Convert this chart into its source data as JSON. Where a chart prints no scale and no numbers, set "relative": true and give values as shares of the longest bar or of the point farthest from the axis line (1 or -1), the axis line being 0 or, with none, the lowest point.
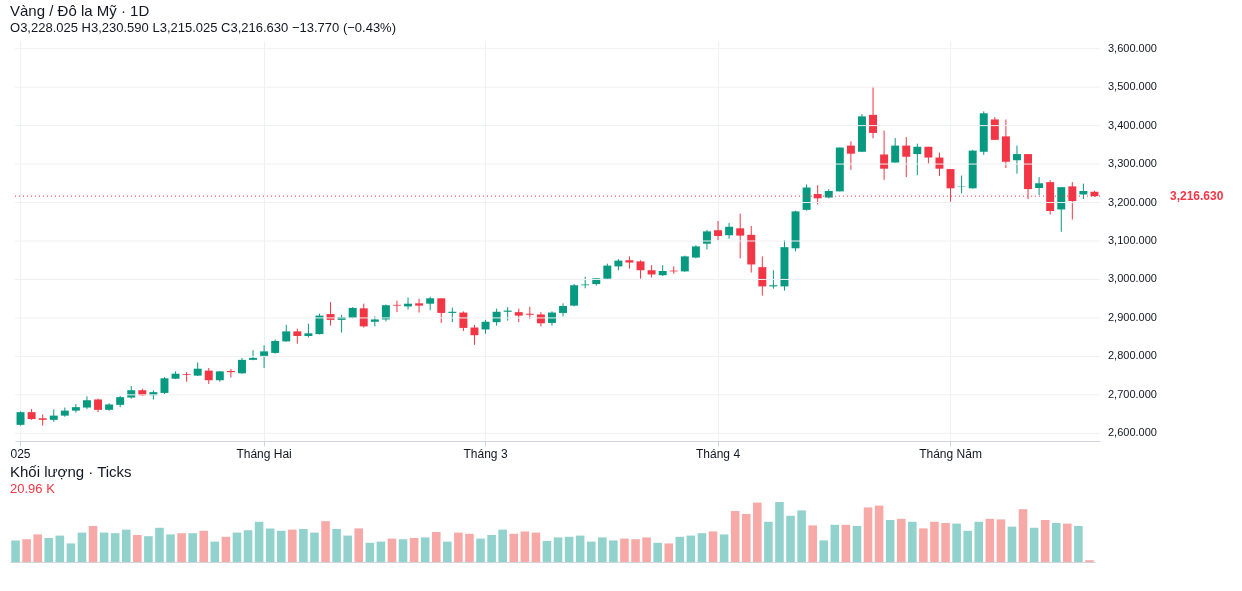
{
  "chart_data": [
    {
      "type": "candlestick",
      "title": "Vàng / Đô la Mỹ · 1D",
      "annotations": [
        "O3,228.025 H3,230.590 L3,215.025 C3,216.630 −13.770 (−0.43%)"
      ],
      "categories": [
        "025",
        null,
        null,
        null,
        null,
        null,
        null,
        null,
        null,
        null,
        null,
        null,
        null,
        null,
        null,
        null,
        null,
        null,
        null,
        null,
        null,
        null,
        "Tháng Hai",
        null,
        null,
        null,
        null,
        null,
        null,
        null,
        null,
        null,
        null,
        null,
        null,
        null,
        null,
        null,
        null,
        null,
        null,
        null,
        "Tháng 3",
        null,
        null,
        null,
        null,
        null,
        null,
        null,
        null,
        null,
        null,
        null,
        null,
        null,
        null,
        null,
        null,
        null,
        null,
        null,
        null,
        "Tháng 4",
        null,
        null,
        null,
        null,
        null,
        null,
        null,
        null,
        null,
        null,
        null,
        null,
        null,
        null,
        null,
        null,
        null,
        null,
        null,
        null,
        "Tháng Năm",
        null,
        null,
        null,
        null,
        null,
        null,
        null,
        null,
        null,
        null,
        null,
        null,
        null
      ],
      "ohlc": [
        [
          2622,
          2657,
          2620,
          2655
        ],
        [
          2655,
          2663,
          2635,
          2637
        ],
        [
          2639,
          2649,
          2620,
          2635
        ],
        [
          2635,
          2662,
          2630,
          2646
        ],
        [
          2646,
          2667,
          2643,
          2659
        ],
        [
          2659,
          2676,
          2654,
          2668
        ],
        [
          2667,
          2696,
          2663,
          2686
        ],
        [
          2688,
          2690,
          2655,
          2661
        ],
        [
          2661,
          2678,
          2659,
          2675
        ],
        [
          2674,
          2697,
          2668,
          2694
        ],
        [
          2693,
          2723,
          2690,
          2712
        ],
        [
          2712,
          2716,
          2697,
          2699
        ],
        [
          2699,
          2712,
          2688,
          2707
        ],
        [
          2705,
          2746,
          2702,
          2743
        ],
        [
          2742,
          2761,
          2741,
          2755
        ],
        [
          2754,
          2759,
          2734,
          2752
        ],
        [
          2750,
          2784,
          2749,
          2768
        ],
        [
          2763,
          2770,
          2728,
          2738
        ],
        [
          2738,
          2762,
          2734,
          2761
        ],
        [
          2762,
          2767,
          2745,
          2759
        ],
        [
          2756,
          2796,
          2755,
          2791
        ],
        [
          2791,
          2816,
          2790,
          2796
        ],
        [
          2799,
          2829,
          2770,
          2813
        ],
        [
          2809,
          2844,
          2807,
          2840
        ],
        [
          2839,
          2882,
          2838,
          2865
        ],
        [
          2865,
          2872,
          2833,
          2853
        ],
        [
          2853,
          2885,
          2849,
          2860
        ],
        [
          2858,
          2911,
          2857,
          2906
        ],
        [
          2910,
          2941,
          2880,
          2895
        ],
        [
          2895,
          2908,
          2862,
          2902
        ],
        [
          2900,
          2928,
          2899,
          2926
        ],
        [
          2925,
          2937,
          2875,
          2878
        ],
        [
          2890,
          2904,
          2878,
          2896
        ],
        [
          2896,
          2935,
          2891,
          2933
        ],
        [
          2934,
          2945,
          2915,
          2932
        ],
        [
          2930,
          2953,
          2922,
          2937
        ],
        [
          2938,
          2950,
          2914,
          2932
        ],
        [
          2937,
          2955,
          2920,
          2951
        ],
        [
          2951,
          2951,
          2887,
          2913
        ],
        [
          2913,
          2927,
          2889,
          2916
        ],
        [
          2914,
          2917,
          2866,
          2874
        ],
        [
          2875,
          2882,
          2830,
          2855
        ],
        [
          2870,
          2895,
          2859,
          2890
        ],
        [
          2889,
          2924,
          2880,
          2916
        ],
        [
          2916,
          2928,
          2893,
          2919
        ],
        [
          2915,
          2924,
          2889,
          2906
        ],
        [
          2911,
          2929,
          2897,
          2908
        ],
        [
          2909,
          2915,
          2878,
          2886
        ],
        [
          2887,
          2917,
          2880,
          2914
        ],
        [
          2913,
          2938,
          2904,
          2931
        ],
        [
          2932,
          2988,
          2930,
          2985
        ],
        [
          2985,
          3007,
          2977,
          2987
        ],
        [
          2988,
          3003,
          2984,
          3003
        ],
        [
          3002,
          3041,
          3000,
          3036
        ],
        [
          3034,
          3053,
          3024,
          3049
        ],
        [
          3050,
          3060,
          3028,
          3044
        ],
        [
          3047,
          3050,
          3002,
          3024
        ],
        [
          3024,
          3037,
          3005,
          3013
        ],
        [
          3011,
          3037,
          3009,
          3022
        ],
        [
          3023,
          3034,
          3015,
          3021
        ],
        [
          3021,
          3062,
          3020,
          3060
        ],
        [
          3057,
          3089,
          3055,
          3086
        ],
        [
          3093,
          3129,
          3078,
          3125
        ],
        [
          3128,
          3152,
          3102,
          3113
        ],
        [
          3115,
          3147,
          3106,
          3137
        ],
        [
          3133,
          3171,
          3055,
          3114
        ],
        [
          3116,
          3139,
          3018,
          3039
        ],
        [
          3032,
          3060,
          2958,
          2982
        ],
        [
          2982,
          3024,
          2976,
          2985
        ],
        [
          2982,
          3102,
          2971,
          3084
        ],
        [
          3081,
          3179,
          3073,
          3177
        ],
        [
          3181,
          3247,
          3179,
          3239
        ],
        [
          3222,
          3245,
          3195,
          3211
        ],
        [
          3213,
          3235,
          3211,
          3230
        ],
        [
          3229,
          3343,
          3229,
          3343
        ],
        [
          3348,
          3359,
          3285,
          3327
        ],
        [
          3332,
          3430,
          3331,
          3424
        ],
        [
          3428,
          3501,
          3367,
          3381
        ],
        [
          3325,
          3387,
          3259,
          3288
        ],
        [
          3304,
          3368,
          3304,
          3348
        ],
        [
          3348,
          3370,
          3266,
          3319
        ],
        [
          3326,
          3353,
          3271,
          3345
        ],
        [
          3345,
          3345,
          3301,
          3317
        ],
        [
          3317,
          3330,
          3269,
          3288
        ],
        [
          3287,
          3287,
          3202,
          3237
        ],
        [
          3241,
          3270,
          3224,
          3242
        ],
        [
          3237,
          3337,
          3236,
          3335
        ],
        [
          3332,
          3437,
          3324,
          3432
        ],
        [
          3416,
          3422,
          3363,
          3363
        ],
        [
          3372,
          3416,
          3290,
          3306
        ],
        [
          3310,
          3348,
          3275,
          3326
        ],
        [
          3326,
          3326,
          3209,
          3235
        ],
        [
          3238,
          3266,
          3219,
          3250
        ],
        [
          3253,
          3258,
          3169,
          3178
        ],
        [
          3182,
          3240,
          3124,
          3240
        ],
        [
          3242,
          3253,
          3156,
          3204
        ],
        [
          3221,
          3249,
          3209,
          3230
        ],
        [
          3228.025,
          3230.59,
          3215.025,
          3216.63
        ]
      ],
      "colors": [
        "#089981",
        "#f23645",
        "#f23645",
        "#089981",
        "#089981",
        "#089981",
        "#089981",
        "#f23645",
        "#089981",
        "#089981",
        "#089981",
        "#f23645",
        "#089981",
        "#089981",
        "#089981",
        "#f23645",
        "#089981",
        "#f23645",
        "#089981",
        "#f23645",
        "#089981",
        "#089981",
        "#089981",
        "#089981",
        "#089981",
        "#f23645",
        "#089981",
        "#089981",
        "#f23645",
        "#089981",
        "#089981",
        "#f23645",
        "#089981",
        "#089981",
        "#f23645",
        "#089981",
        "#f23645",
        "#089981",
        "#f23645",
        "#089981",
        "#f23645",
        "#f23645",
        "#089981",
        "#089981",
        "#089981",
        "#f23645",
        "#f23645",
        "#f23645",
        "#089981",
        "#089981",
        "#089981",
        "#089981",
        "#089981",
        "#089981",
        "#089981",
        "#f23645",
        "#f23645",
        "#f23645",
        "#089981",
        "#f23645",
        "#089981",
        "#089981",
        "#089981",
        "#f23645",
        "#089981",
        "#f23645",
        "#f23645",
        "#f23645",
        "#089981",
        "#089981",
        "#089981",
        "#089981",
        "#f23645",
        "#089981",
        "#089981",
        "#f23645",
        "#089981",
        "#f23645",
        "#f23645",
        "#089981",
        "#f23645",
        "#089981",
        "#f23645",
        "#f23645",
        "#f23645",
        "#089981",
        "#089981",
        "#089981",
        "#f23645",
        "#f23645",
        "#089981",
        "#f23645",
        "#089981",
        "#f23645",
        "#089981",
        "#f23645",
        "#089981",
        "#f23645"
      ],
      "ylim": [
        2580,
        3620
      ],
      "yticks": [
        {
          "value": 2600,
          "label": "2,600.000"
        },
        {
          "value": 2700,
          "label": "2,700.000"
        },
        {
          "value": 2800,
          "label": "2,800.000"
        },
        {
          "value": 2900,
          "label": "2,900.000"
        },
        {
          "value": 3000,
          "label": "3,000.000"
        },
        {
          "value": 3100,
          "label": "3,100.000"
        },
        {
          "value": 3200,
          "label": "3,200.000"
        },
        {
          "value": 3300,
          "label": "3,300.000"
        },
        {
          "value": 3400,
          "label": "3,400.000"
        },
        {
          "value": 3500,
          "label": "3,500.000"
        },
        {
          "value": 3600,
          "label": "3,600.000"
        }
      ],
      "grid": true,
      "ref_lines": [
        {
          "axis": "y",
          "value": 3216.63,
          "label": "3,216.630",
          "color": "#f23645",
          "line_style": "dotted"
        }
      ]
    },
    {
      "type": "bar",
      "title": "Khối lượng · Ticks",
      "annotations": [
        "20.96 K"
      ],
      "relative": true,
      "categories": [
        null,
        null,
        null,
        null,
        null,
        null,
        null,
        null,
        null,
        null,
        null,
        null,
        null,
        null,
        null,
        null,
        null,
        null,
        null,
        null,
        null,
        null,
        null,
        null,
        null,
        null,
        null,
        null,
        null,
        null,
        null,
        null,
        null,
        null,
        null,
        null,
        null,
        null,
        null,
        null,
        null,
        null,
        null,
        null,
        null,
        null,
        null,
        null,
        null,
        null,
        null,
        null,
        null,
        null,
        null,
        null,
        null,
        null,
        null,
        null,
        null,
        null,
        null,
        null,
        null,
        null,
        null,
        null,
        null,
        null,
        null,
        null,
        null,
        null,
        null,
        null,
        null,
        null,
        null,
        null,
        null,
        null,
        null,
        null,
        null,
        null,
        null,
        null,
        null,
        null,
        null,
        null,
        null,
        null,
        null,
        null,
        null,
        null
      ],
      "values": [
        0.36,
        0.38,
        0.46,
        0.4,
        0.44,
        0.31,
        0.49,
        0.6,
        0.49,
        0.48,
        0.54,
        0.45,
        0.43,
        0.57,
        0.46,
        0.48,
        0.48,
        0.52,
        0.34,
        0.42,
        0.49,
        0.53,
        0.67,
        0.56,
        0.52,
        0.54,
        0.55,
        0.49,
        0.68,
        0.55,
        0.44,
        0.56,
        0.32,
        0.34,
        0.39,
        0.38,
        0.4,
        0.41,
        0.5,
        0.34,
        0.49,
        0.47,
        0.39,
        0.45,
        0.54,
        0.47,
        0.51,
        0.49,
        0.35,
        0.41,
        0.42,
        0.44,
        0.34,
        0.41,
        0.36,
        0.39,
        0.38,
        0.41,
        0.32,
        0.31,
        0.42,
        0.44,
        0.48,
        0.51,
        0.46,
        0.85,
        0.8,
        0.99,
        0.67,
        1.0,
        0.77,
        0.86,
        0.61,
        0.36,
        0.62,
        0.62,
        0.6,
        0.91,
        0.94,
        0.7,
        0.72,
        0.67,
        0.56,
        0.67,
        0.65,
        0.64,
        0.52,
        0.67,
        0.72,
        0.71,
        0.59,
        0.88,
        0.57,
        0.7,
        0.65,
        0.64,
        0.6,
        0.03
      ],
      "colors": [
        "#92d2cc",
        "#f7a9a7",
        "#f7a9a7",
        "#92d2cc",
        "#92d2cc",
        "#92d2cc",
        "#92d2cc",
        "#f7a9a7",
        "#92d2cc",
        "#92d2cc",
        "#92d2cc",
        "#f7a9a7",
        "#92d2cc",
        "#92d2cc",
        "#92d2cc",
        "#f7a9a7",
        "#92d2cc",
        "#f7a9a7",
        "#92d2cc",
        "#f7a9a7",
        "#92d2cc",
        "#92d2cc",
        "#92d2cc",
        "#92d2cc",
        "#92d2cc",
        "#f7a9a7",
        "#92d2cc",
        "#92d2cc",
        "#f7a9a7",
        "#92d2cc",
        "#92d2cc",
        "#f7a9a7",
        "#92d2cc",
        "#92d2cc",
        "#f7a9a7",
        "#92d2cc",
        "#f7a9a7",
        "#92d2cc",
        "#f7a9a7",
        "#92d2cc",
        "#f7a9a7",
        "#f7a9a7",
        "#92d2cc",
        "#92d2cc",
        "#92d2cc",
        "#f7a9a7",
        "#f7a9a7",
        "#f7a9a7",
        "#92d2cc",
        "#92d2cc",
        "#92d2cc",
        "#92d2cc",
        "#92d2cc",
        "#92d2cc",
        "#92d2cc",
        "#f7a9a7",
        "#f7a9a7",
        "#f7a9a7",
        "#92d2cc",
        "#f7a9a7",
        "#92d2cc",
        "#92d2cc",
        "#92d2cc",
        "#f7a9a7",
        "#92d2cc",
        "#f7a9a7",
        "#f7a9a7",
        "#f7a9a7",
        "#92d2cc",
        "#92d2cc",
        "#92d2cc",
        "#92d2cc",
        "#f7a9a7",
        "#92d2cc",
        "#92d2cc",
        "#f7a9a7",
        "#92d2cc",
        "#f7a9a7",
        "#f7a9a7",
        "#92d2cc",
        "#f7a9a7",
        "#92d2cc",
        "#f7a9a7",
        "#f7a9a7",
        "#f7a9a7",
        "#92d2cc",
        "#92d2cc",
        "#92d2cc",
        "#f7a9a7",
        "#f7a9a7",
        "#92d2cc",
        "#f7a9a7",
        "#92d2cc",
        "#f7a9a7",
        "#92d2cc",
        "#f7a9a7",
        "#92d2cc",
        "#f7a9a7"
      ],
      "grid": false
    }
  ]
}
